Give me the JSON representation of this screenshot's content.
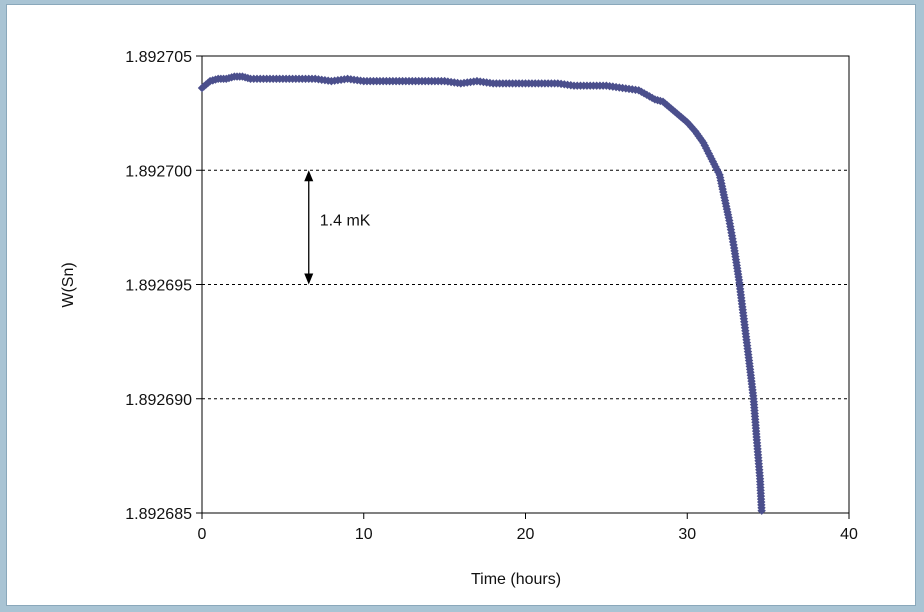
{
  "chart_data": {
    "type": "scatter",
    "title": "",
    "xlabel": "Time (hours)",
    "ylabel": "W(Sn)",
    "xlim": [
      0,
      40
    ],
    "ylim": [
      1.892685,
      1.892705
    ],
    "x_ticks": [
      "0",
      "10",
      "20",
      "30",
      "40"
    ],
    "y_ticks": [
      "1.892685",
      "1.892690",
      "1.892695",
      "1.892700",
      "1.892705"
    ],
    "gridlines_y": [
      1.89269,
      1.892695,
      1.8927
    ],
    "grid_style": "dotted horizontal",
    "marker": "diamond",
    "series_color": "#4b4f8c",
    "annotation": {
      "text": "1.4 mK",
      "x": 6.6,
      "y_from": 1.8927,
      "y_to": 1.892695
    },
    "series": [
      {
        "points": [
          [
            0.0,
            1.8927036
          ],
          [
            0.5,
            1.8927039
          ],
          [
            1.0,
            1.892704
          ],
          [
            1.5,
            1.892704
          ],
          [
            2.0,
            1.8927041
          ],
          [
            2.5,
            1.8927041
          ],
          [
            3.0,
            1.892704
          ],
          [
            4.0,
            1.892704
          ],
          [
            5.0,
            1.892704
          ],
          [
            6.0,
            1.892704
          ],
          [
            7.0,
            1.892704
          ],
          [
            8.0,
            1.8927039
          ],
          [
            9.0,
            1.892704
          ],
          [
            10.0,
            1.8927039
          ],
          [
            11.0,
            1.8927039
          ],
          [
            12.0,
            1.8927039
          ],
          [
            13.0,
            1.8927039
          ],
          [
            14.0,
            1.8927039
          ],
          [
            15.0,
            1.8927039
          ],
          [
            16.0,
            1.8927038
          ],
          [
            17.0,
            1.8927039
          ],
          [
            18.0,
            1.8927038
          ],
          [
            19.0,
            1.8927038
          ],
          [
            20.0,
            1.8927038
          ],
          [
            21.0,
            1.8927038
          ],
          [
            22.0,
            1.8927038
          ],
          [
            23.0,
            1.8927037
          ],
          [
            24.0,
            1.8927037
          ],
          [
            25.0,
            1.8927037
          ],
          [
            26.0,
            1.8927036
          ],
          [
            27.0,
            1.8927035
          ],
          [
            27.5,
            1.8927033
          ],
          [
            28.0,
            1.8927031
          ],
          [
            28.5,
            1.892703
          ],
          [
            29.0,
            1.8927027
          ],
          [
            29.5,
            1.8927024
          ],
          [
            30.0,
            1.8927021
          ],
          [
            30.5,
            1.8927017
          ],
          [
            31.0,
            1.8927012
          ],
          [
            31.5,
            1.8927005
          ],
          [
            32.0,
            1.8926998
          ],
          [
            32.3,
            1.8926988
          ],
          [
            32.6,
            1.8926978
          ],
          [
            32.9,
            1.8926966
          ],
          [
            33.2,
            1.8926952
          ],
          [
            33.5,
            1.8926935
          ],
          [
            33.8,
            1.8926918
          ],
          [
            34.1,
            1.89269
          ],
          [
            34.3,
            1.8926882
          ],
          [
            34.5,
            1.8926865
          ],
          [
            34.6,
            1.8926851
          ]
        ]
      }
    ]
  }
}
